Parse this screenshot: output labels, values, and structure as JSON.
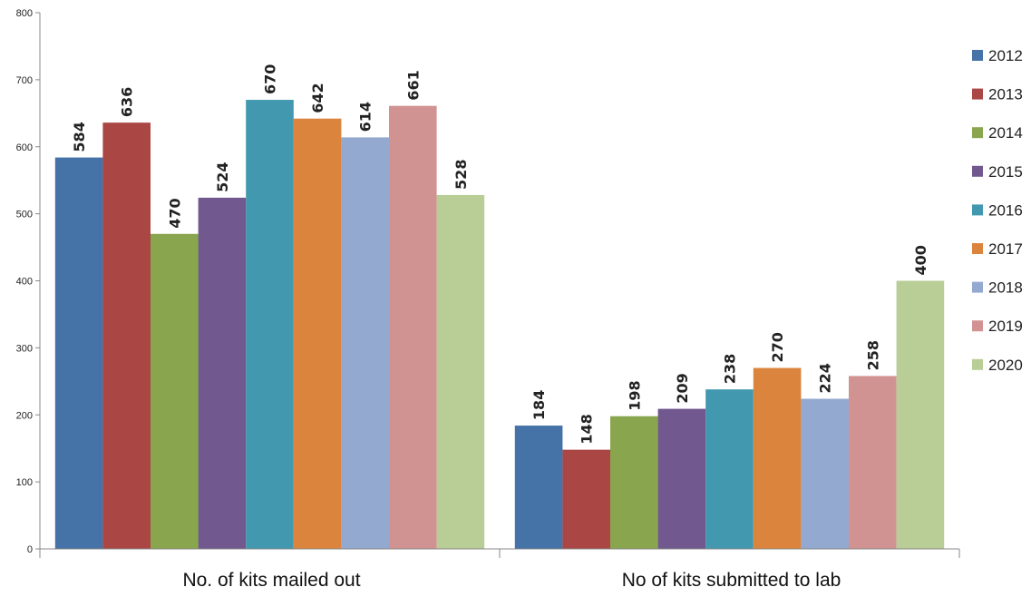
{
  "chart_data": {
    "type": "bar",
    "title": "",
    "xlabel": "",
    "ylabel": "",
    "ylim": [
      0,
      800
    ],
    "yticks": [
      0,
      100,
      200,
      300,
      400,
      500,
      600,
      700,
      800
    ],
    "grid": false,
    "legend_position": "right",
    "categories": [
      "No. of kits mailed out",
      "No of kits submitted to lab"
    ],
    "series": [
      {
        "name": "2012",
        "color": "#4572A7",
        "values": [
          584,
          184
        ]
      },
      {
        "name": "2013",
        "color": "#AA4643",
        "values": [
          636,
          148
        ]
      },
      {
        "name": "2014",
        "color": "#89A54E",
        "values": [
          470,
          198
        ]
      },
      {
        "name": "2015",
        "color": "#71588F",
        "values": [
          524,
          209
        ]
      },
      {
        "name": "2016",
        "color": "#4198AF",
        "values": [
          670,
          238
        ]
      },
      {
        "name": "2017",
        "color": "#DB843D",
        "values": [
          642,
          270
        ]
      },
      {
        "name": "2018",
        "color": "#93A9CF",
        "values": [
          614,
          224
        ]
      },
      {
        "name": "2019",
        "color": "#D19392",
        "values": [
          661,
          258
        ]
      },
      {
        "name": "2020",
        "color": "#B9CD96",
        "values": [
          528,
          400
        ]
      }
    ]
  }
}
